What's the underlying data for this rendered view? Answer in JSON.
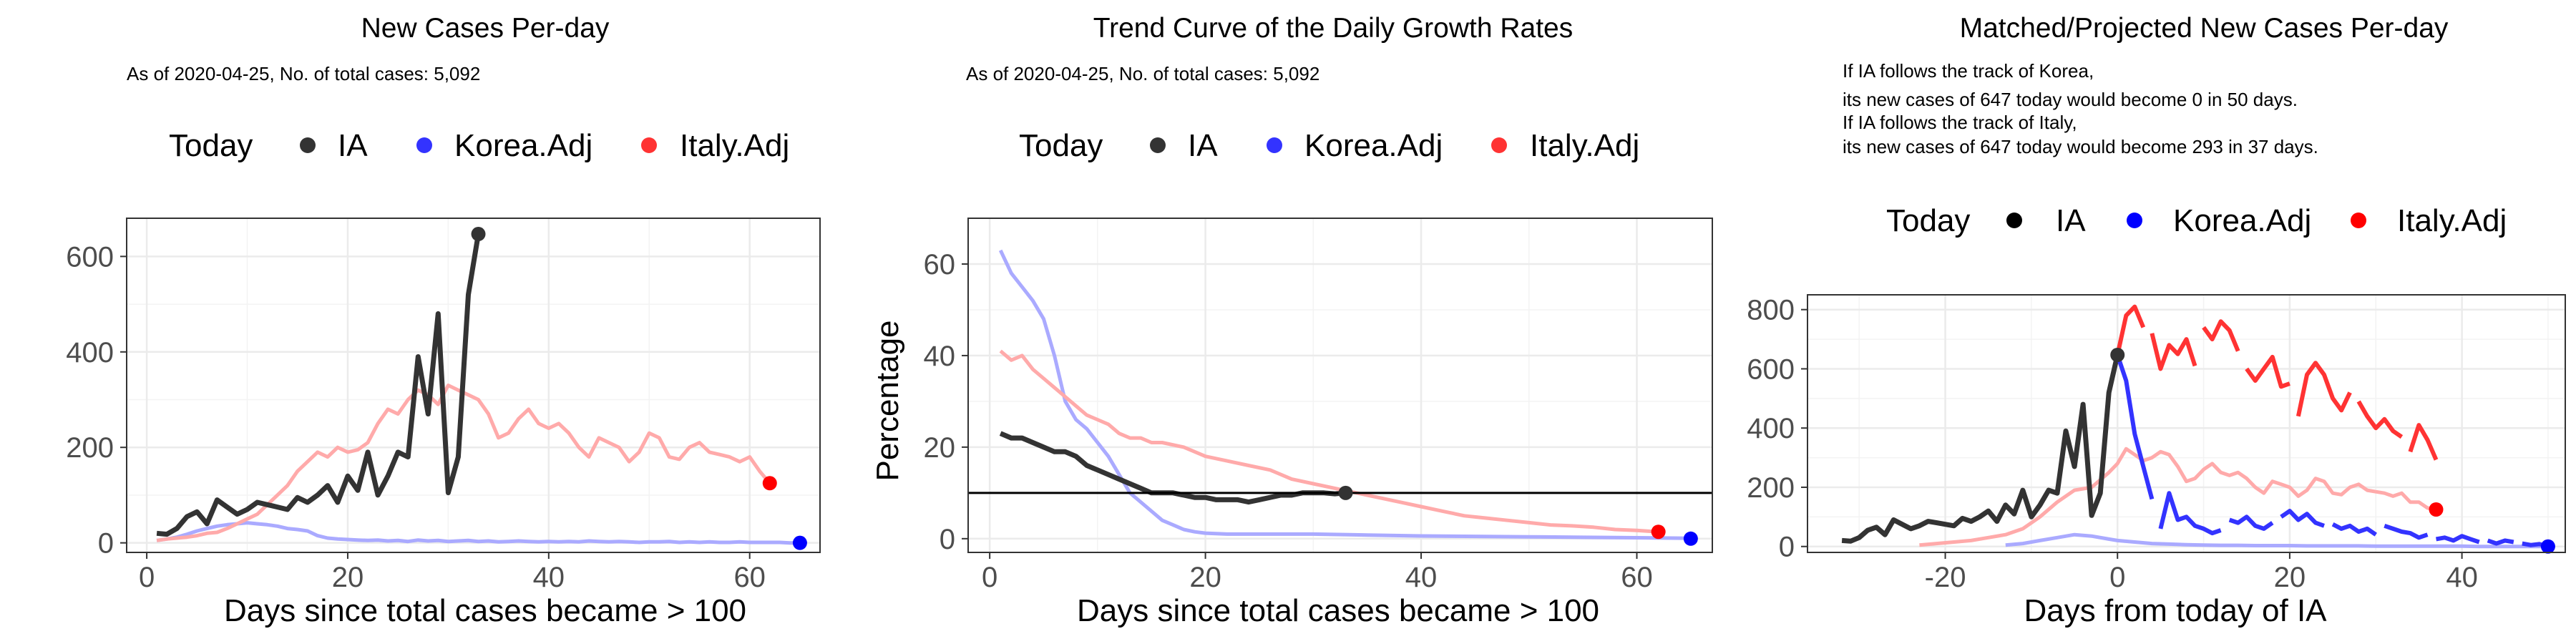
{
  "colors": {
    "ia": "#333333",
    "korea": "#3333ff",
    "korea_faint": "#aaaaff",
    "italy": "#ff3333",
    "italy_faint": "#ffaaaa",
    "panel_border": "#333333",
    "grid": "#ebebeb"
  },
  "legend": {
    "title": "Today",
    "items": [
      "IA",
      "Korea.Adj",
      "Italy.Adj"
    ]
  },
  "chart_data": [
    {
      "type": "line",
      "title": "New Cases Per-day",
      "subtitle": [
        "As of 2020-04-25, No. of total cases: 5,092"
      ],
      "xlabel": "Days since total cases became > 100",
      "ylabel": "",
      "xlim": [
        -2,
        67
      ],
      "ylim": [
        -20,
        680
      ],
      "x_ticks": [
        0,
        20,
        40,
        60
      ],
      "y_ticks": [
        0,
        200,
        400,
        600
      ],
      "grid": true,
      "legend_position": "top",
      "series": [
        {
          "name": "Korea.Adj",
          "style": "faint_blue",
          "x": [
            1,
            2,
            3,
            4,
            5,
            6,
            7,
            8,
            9,
            10,
            11,
            12,
            13,
            14,
            15,
            16,
            17,
            18,
            19,
            20,
            21,
            22,
            23,
            24,
            25,
            26,
            27,
            28,
            29,
            30,
            31,
            32,
            33,
            34,
            35,
            36,
            37,
            38,
            39,
            40,
            41,
            42,
            43,
            44,
            45,
            46,
            47,
            48,
            49,
            50,
            51,
            52,
            53,
            54,
            55,
            56,
            57,
            58,
            59,
            60,
            61,
            62,
            63,
            64,
            65
          ],
          "y": [
            5,
            8,
            12,
            18,
            25,
            30,
            35,
            38,
            40,
            42,
            40,
            38,
            35,
            30,
            28,
            25,
            15,
            10,
            8,
            7,
            6,
            5,
            6,
            4,
            5,
            3,
            6,
            4,
            5,
            3,
            4,
            5,
            3,
            4,
            2,
            3,
            4,
            3,
            2,
            3,
            2,
            3,
            2,
            4,
            3,
            2,
            3,
            2,
            1,
            2,
            2,
            3,
            1,
            2,
            1,
            2,
            1,
            1,
            2,
            1,
            1,
            1,
            1,
            0,
            0
          ]
        },
        {
          "name": "Italy.Adj",
          "style": "faint_red",
          "x": [
            1,
            2,
            3,
            4,
            5,
            6,
            7,
            8,
            9,
            10,
            11,
            12,
            13,
            14,
            15,
            16,
            17,
            18,
            19,
            20,
            21,
            22,
            23,
            24,
            25,
            26,
            27,
            28,
            29,
            30,
            31,
            32,
            33,
            34,
            35,
            36,
            37,
            38,
            39,
            40,
            41,
            42,
            43,
            44,
            45,
            46,
            47,
            48,
            49,
            50,
            51,
            52,
            53,
            54,
            55,
            56,
            57,
            58,
            59,
            60,
            61,
            62
          ],
          "y": [
            5,
            8,
            10,
            12,
            15,
            20,
            22,
            30,
            40,
            50,
            60,
            80,
            100,
            120,
            150,
            170,
            190,
            180,
            200,
            190,
            195,
            210,
            250,
            280,
            270,
            300,
            320,
            310,
            290,
            330,
            320,
            310,
            300,
            270,
            220,
            230,
            260,
            280,
            250,
            240,
            250,
            230,
            200,
            180,
            220,
            210,
            200,
            170,
            190,
            230,
            220,
            180,
            175,
            200,
            210,
            190,
            185,
            180,
            170,
            180,
            150,
            125
          ]
        },
        {
          "name": "IA",
          "style": "solid_dark",
          "x": [
            1,
            2,
            3,
            4,
            5,
            6,
            7,
            8,
            9,
            10,
            11,
            12,
            13,
            14,
            15,
            16,
            17,
            18,
            19,
            20,
            21,
            22,
            23,
            24,
            25,
            26,
            27,
            28,
            29,
            30,
            31,
            32,
            33
          ],
          "y": [
            20,
            18,
            30,
            55,
            65,
            40,
            90,
            75,
            60,
            70,
            85,
            80,
            75,
            70,
            95,
            85,
            100,
            120,
            85,
            140,
            110,
            190,
            100,
            140,
            190,
            180,
            390,
            270,
            480,
            105,
            180,
            520,
            647
          ]
        }
      ],
      "today_points": [
        {
          "series": "IA",
          "x": 33,
          "y": 647
        },
        {
          "series": "Korea.Adj",
          "x": 65,
          "y": 0
        },
        {
          "series": "Italy.Adj",
          "x": 62,
          "y": 125
        }
      ]
    },
    {
      "type": "line",
      "title": "Trend Curve of the Daily Growth Rates",
      "subtitle": [
        "As of 2020-04-25, No. of total cases: 5,092"
      ],
      "xlabel": "Days since total cases became > 100",
      "ylabel": "Percentage",
      "xlim": [
        -2,
        67
      ],
      "ylim": [
        -3,
        70
      ],
      "x_ticks": [
        0,
        20,
        40,
        60
      ],
      "y_ticks": [
        0,
        20,
        40,
        60
      ],
      "hline": 10,
      "grid": true,
      "legend_position": "top",
      "series": [
        {
          "name": "Korea.Adj",
          "style": "faint_blue",
          "x": [
            1,
            2,
            3,
            4,
            5,
            6,
            7,
            8,
            9,
            10,
            11,
            12,
            13,
            14,
            15,
            16,
            17,
            18,
            19,
            20,
            22,
            25,
            30,
            35,
            40,
            45,
            50,
            55,
            60,
            65
          ],
          "y": [
            63,
            58,
            55,
            52,
            48,
            40,
            30,
            26,
            24,
            21,
            18,
            14,
            10,
            8,
            6,
            4,
            3,
            2,
            1.5,
            1.2,
            1,
            1,
            1,
            0.8,
            0.6,
            0.5,
            0.4,
            0.3,
            0.2,
            0.1
          ]
        },
        {
          "name": "Italy.Adj",
          "style": "faint_red",
          "x": [
            1,
            2,
            3,
            4,
            5,
            6,
            7,
            8,
            9,
            10,
            11,
            12,
            13,
            14,
            15,
            16,
            18,
            20,
            22,
            24,
            26,
            28,
            30,
            32,
            34,
            36,
            38,
            40,
            42,
            44,
            46,
            48,
            50,
            52,
            54,
            56,
            58,
            60,
            62
          ],
          "y": [
            41,
            39,
            40,
            37,
            35,
            33,
            31,
            29,
            27,
            26,
            25,
            23,
            22,
            22,
            21,
            21,
            20,
            18,
            17,
            16,
            15,
            13,
            12,
            11,
            10,
            9,
            8,
            7,
            6,
            5,
            4.5,
            4,
            3.5,
            3,
            2.8,
            2.5,
            2,
            1.8,
            1.5
          ]
        },
        {
          "name": "IA",
          "style": "solid_dark",
          "x": [
            1,
            2,
            3,
            4,
            5,
            6,
            7,
            8,
            9,
            10,
            11,
            12,
            13,
            14,
            15,
            16,
            17,
            18,
            19,
            20,
            21,
            22,
            23,
            24,
            25,
            26,
            27,
            28,
            29,
            30,
            31,
            32,
            33
          ],
          "y": [
            23,
            22,
            22,
            21,
            20,
            19,
            19,
            18,
            16,
            15,
            14,
            13,
            12,
            11,
            10,
            10,
            10,
            9.5,
            9,
            9,
            8.5,
            8.5,
            8.5,
            8,
            8.5,
            9,
            9.5,
            9.5,
            10,
            10,
            10,
            9.8,
            10
          ]
        }
      ],
      "today_points": [
        {
          "series": "IA",
          "x": 33,
          "y": 10
        },
        {
          "series": "Korea.Adj",
          "x": 65,
          "y": 0
        },
        {
          "series": "Italy.Adj",
          "x": 62,
          "y": 1.5
        }
      ]
    },
    {
      "type": "line",
      "title": "Matched/Projected New Cases Per-day",
      "subtitle": [
        "If IA follows the track of Korea,",
        "its new cases of 647 today would become 0 in 50 days.",
        "If IA follows the track of Italy,",
        "its new cases of 647 today would become 293 in 37 days."
      ],
      "xlabel": "Days from today of IA",
      "ylabel": "",
      "xlim": [
        -36,
        52
      ],
      "ylim": [
        -20,
        850
      ],
      "x_ticks": [
        -20,
        0,
        20,
        40
      ],
      "y_ticks": [
        0,
        200,
        400,
        600,
        800
      ],
      "grid": true,
      "legend_position": "top",
      "series": [
        {
          "name": "Korea.Adj (matched)",
          "style": "faint_blue",
          "x": [
            -13,
            -11,
            -9,
            -7,
            -5,
            -3,
            -1,
            0,
            2,
            4,
            6,
            8,
            10,
            12,
            14,
            16,
            18,
            20,
            22,
            24,
            26,
            28,
            30,
            32,
            34,
            36,
            38,
            40,
            42,
            44,
            46,
            48,
            50
          ],
          "y": [
            5,
            10,
            20,
            30,
            40,
            35,
            25,
            20,
            15,
            10,
            8,
            6,
            5,
            4,
            4,
            3,
            3,
            3,
            2,
            2,
            2,
            2,
            1,
            1,
            1,
            1,
            1,
            1,
            0,
            0,
            0,
            0,
            0
          ]
        },
        {
          "name": "Italy.Adj (matched)",
          "style": "faint_red",
          "x": [
            -23,
            -21,
            -19,
            -17,
            -15,
            -13,
            -11,
            -9,
            -7,
            -5,
            -3,
            -1,
            0,
            1,
            2,
            3,
            4,
            5,
            6,
            7,
            8,
            9,
            10,
            11,
            12,
            13,
            14,
            15,
            16,
            17,
            18,
            19,
            20,
            21,
            22,
            23,
            24,
            25,
            26,
            27,
            28,
            29,
            30,
            31,
            32,
            33,
            34,
            35,
            36,
            37
          ],
          "y": [
            5,
            10,
            15,
            20,
            30,
            40,
            60,
            100,
            150,
            190,
            200,
            250,
            280,
            330,
            310,
            290,
            300,
            320,
            310,
            270,
            220,
            230,
            260,
            280,
            250,
            240,
            250,
            230,
            200,
            180,
            220,
            210,
            200,
            170,
            190,
            230,
            220,
            180,
            175,
            200,
            210,
            190,
            185,
            180,
            170,
            180,
            150,
            150,
            130,
            125
          ]
        },
        {
          "name": "IA",
          "style": "solid_dark",
          "x": [
            -32,
            -31,
            -30,
            -29,
            -28,
            -27,
            -26,
            -25,
            -24,
            -23,
            -22,
            -21,
            -20,
            -19,
            -18,
            -17,
            -16,
            -15,
            -14,
            -13,
            -12,
            -11,
            -10,
            -9,
            -8,
            -7,
            -6,
            -5,
            -4,
            -3,
            -2,
            -1,
            0
          ],
          "y": [
            20,
            18,
            30,
            55,
            65,
            40,
            90,
            75,
            60,
            70,
            85,
            80,
            75,
            70,
            95,
            85,
            100,
            120,
            85,
            140,
            110,
            190,
            100,
            140,
            190,
            180,
            390,
            270,
            480,
            105,
            180,
            520,
            647
          ]
        },
        {
          "name": "Korea.Adj (projected)",
          "style": "solid_blue",
          "x": [
            0,
            1,
            2,
            3,
            4,
            5,
            6,
            7,
            8,
            9,
            10,
            11,
            12,
            13,
            14,
            15,
            16,
            17,
            18,
            19,
            20,
            21,
            22,
            23,
            24,
            25,
            26,
            27,
            28,
            29,
            30,
            31,
            32,
            33,
            34,
            35,
            36,
            37,
            38,
            39,
            40,
            41,
            42,
            43,
            44,
            45,
            46,
            47,
            48,
            49,
            50
          ],
          "y": [
            647,
            560,
            380,
            270,
            160,
            60,
            180,
            90,
            100,
            70,
            60,
            45,
            55,
            90,
            80,
            100,
            70,
            60,
            80,
            100,
            120,
            90,
            110,
            80,
            70,
            75,
            60,
            70,
            50,
            60,
            40,
            70,
            60,
            50,
            45,
            30,
            40,
            25,
            30,
            20,
            35,
            25,
            15,
            20,
            10,
            20,
            15,
            10,
            5,
            8,
            0
          ],
          "gaps_after_x": [
            4,
            12,
            18,
            24,
            30,
            36,
            42,
            46
          ]
        },
        {
          "name": "Italy.Adj (projected)",
          "style": "solid_red",
          "x": [
            0,
            1,
            2,
            3,
            4,
            5,
            6,
            7,
            8,
            9,
            10,
            11,
            12,
            13,
            14,
            15,
            16,
            17,
            18,
            19,
            20,
            21,
            22,
            23,
            24,
            25,
            26,
            27,
            28,
            29,
            30,
            31,
            32,
            33,
            34,
            35,
            36,
            37
          ],
          "y": [
            647,
            780,
            810,
            740,
            720,
            600,
            680,
            650,
            700,
            610,
            740,
            700,
            760,
            730,
            660,
            600,
            560,
            600,
            640,
            540,
            550,
            440,
            580,
            620,
            580,
            500,
            460,
            520,
            490,
            440,
            400,
            430,
            390,
            370,
            320,
            410,
            360,
            293
          ],
          "gaps_after_x": [
            3,
            9,
            14,
            20,
            27,
            33
          ]
        }
      ],
      "today_points": [
        {
          "series": "IA",
          "x": 0,
          "y": 647
        },
        {
          "series": "Korea.Adj",
          "x": 50,
          "y": 0
        },
        {
          "series": "Italy.Adj",
          "x": 37,
          "y": 125
        }
      ]
    }
  ]
}
